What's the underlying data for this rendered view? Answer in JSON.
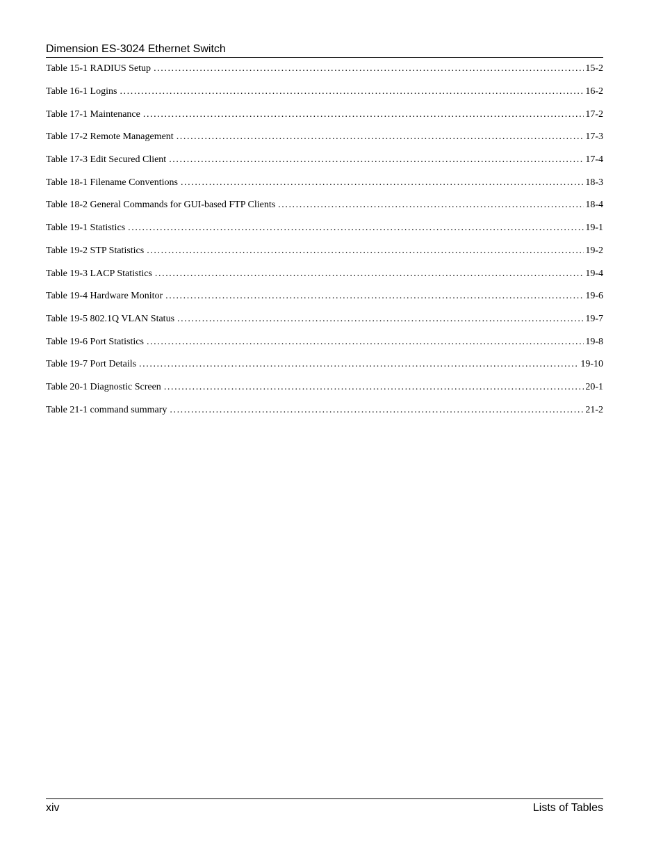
{
  "header": {
    "title": "Dimension ES-3024 Ethernet Switch"
  },
  "toc": {
    "entries": [
      {
        "title": "Table 15-1 RADIUS Setup",
        "page": "15-2"
      },
      {
        "title": "Table 16-1 Logins",
        "page": "16-2"
      },
      {
        "title": "Table 17-1 Maintenance",
        "page": "17-2"
      },
      {
        "title": "Table 17-2 Remote Management",
        "page": "17-3"
      },
      {
        "title": "Table 17-3 Edit Secured Client",
        "page": "17-4"
      },
      {
        "title": "Table 18-1 Filename Conventions",
        "page": "18-3"
      },
      {
        "title": "Table 18-2 General Commands for GUI-based FTP Clients",
        "page": "18-4"
      },
      {
        "title": "Table 19-1 Statistics",
        "page": "19-1"
      },
      {
        "title": "Table 19-2 STP Statistics",
        "page": "19-2"
      },
      {
        "title": "Table 19-3 LACP Statistics",
        "page": "19-4"
      },
      {
        "title": "Table 19-4 Hardware Monitor",
        "page": "19-6"
      },
      {
        "title": "Table 19-5 802.1Q VLAN Status",
        "page": "19-7"
      },
      {
        "title": "Table 19-6 Port Statistics",
        "page": "19-8"
      },
      {
        "title": "Table 19-7 Port Details",
        "page": "19-10"
      },
      {
        "title": "Table 20-1 Diagnostic Screen",
        "page": "20-1"
      },
      {
        "title": "Table 21-1 command summary",
        "page": "21-2"
      }
    ]
  },
  "footer": {
    "page_number": "xiv",
    "section_title": "Lists of Tables"
  }
}
